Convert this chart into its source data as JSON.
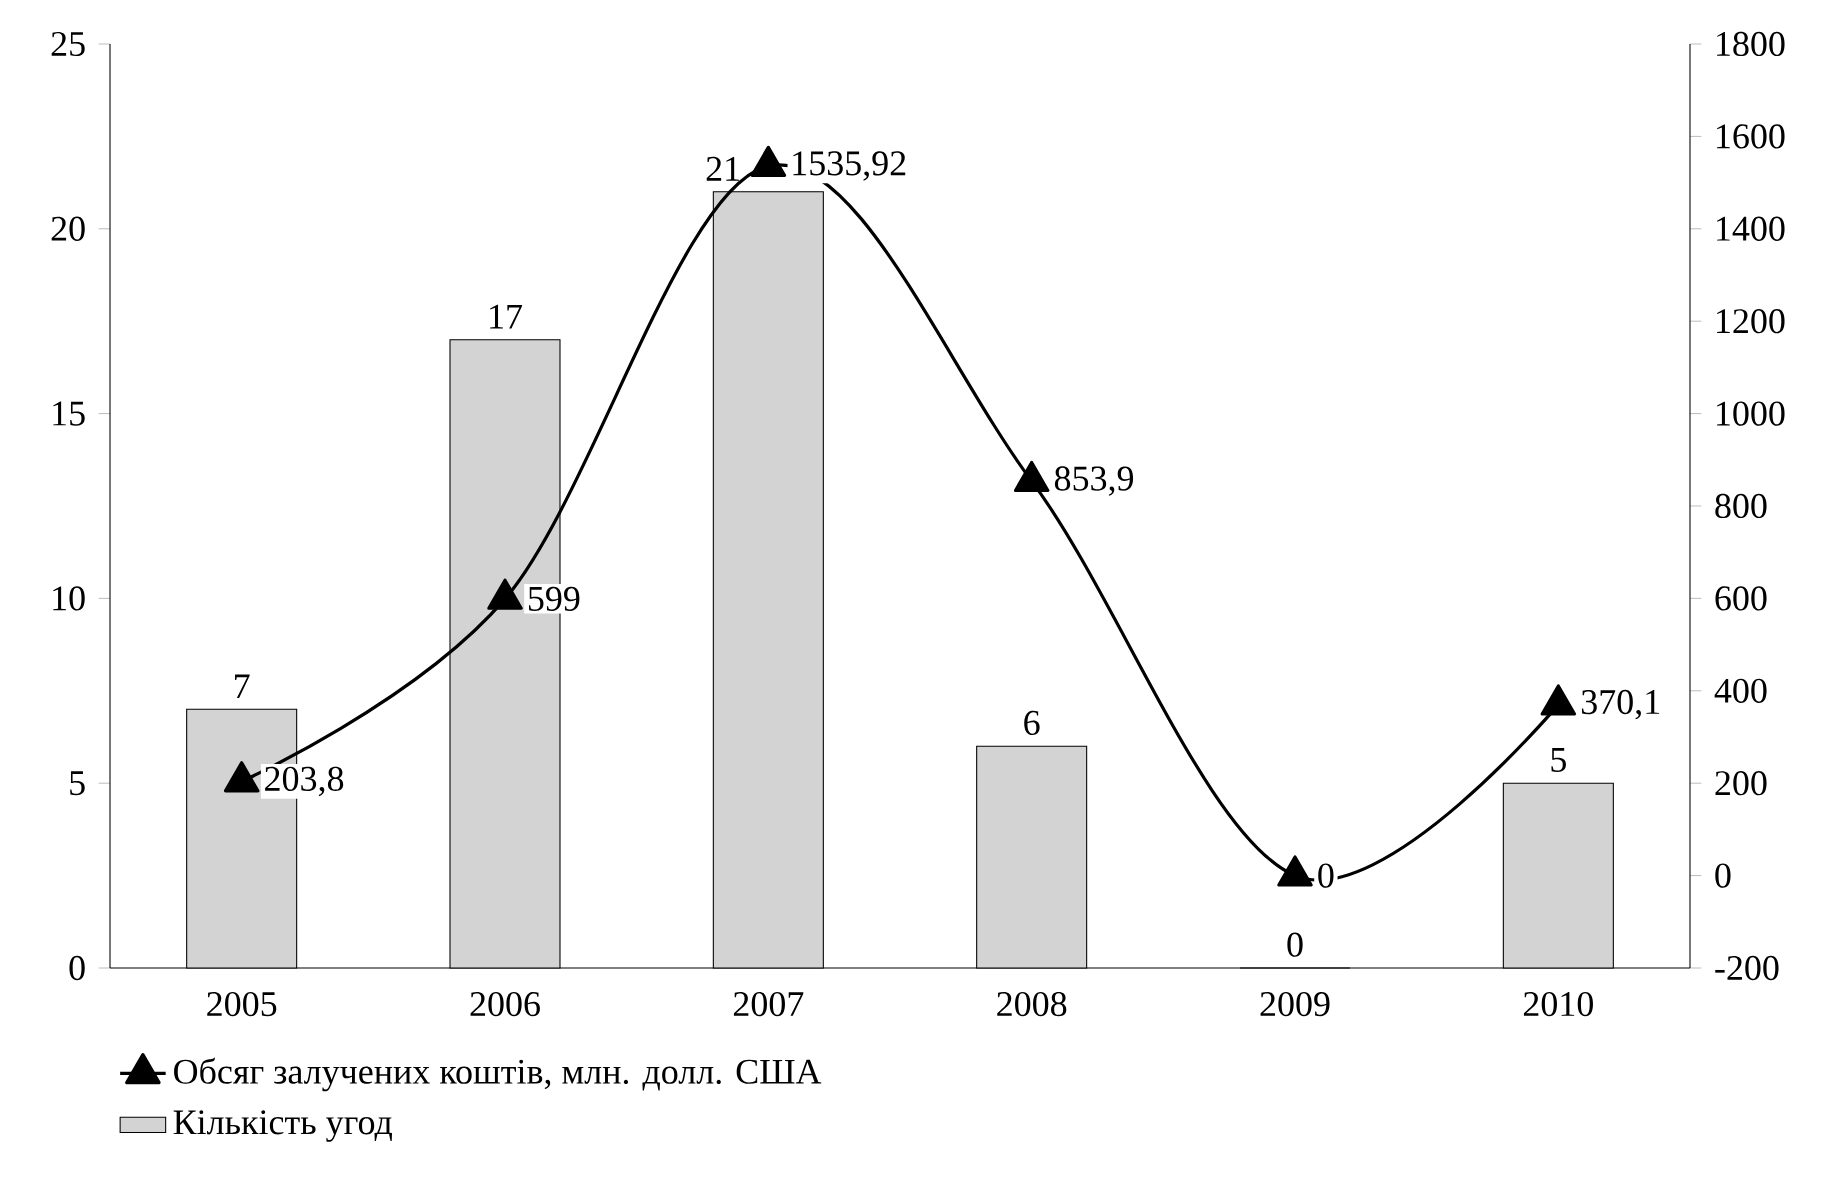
{
  "chart_data": {
    "type": "bar",
    "categories": [
      "2005",
      "2006",
      "2007",
      "2008",
      "2009",
      "2010"
    ],
    "series": [
      {
        "name": "Кількість угод",
        "color": "#d3d3d3",
        "values": [
          7,
          17,
          21,
          6,
          0,
          5
        ],
        "data_labels": true
      },
      {
        "name": "Обсяг залучених коштів, млн. долл. США",
        "type": "line",
        "axis": "y2",
        "color": "#000000",
        "marker": "triangle",
        "values": [
          203.8,
          599,
          1535.92,
          853.9,
          0,
          370.1
        ],
        "value_labels": [
          "203,8",
          "599",
          "1535,92",
          "853,9",
          "0",
          "370,1"
        ]
      }
    ],
    "ylim": [
      0,
      25
    ],
    "yticks": [
      0,
      5,
      10,
      15,
      20,
      25
    ],
    "y2lim": [
      -200,
      1800
    ],
    "y2ticks": [
      -200,
      0,
      200,
      400,
      600,
      800,
      1000,
      1200,
      1400,
      1600,
      1800
    ],
    "legend": "bottom left"
  }
}
